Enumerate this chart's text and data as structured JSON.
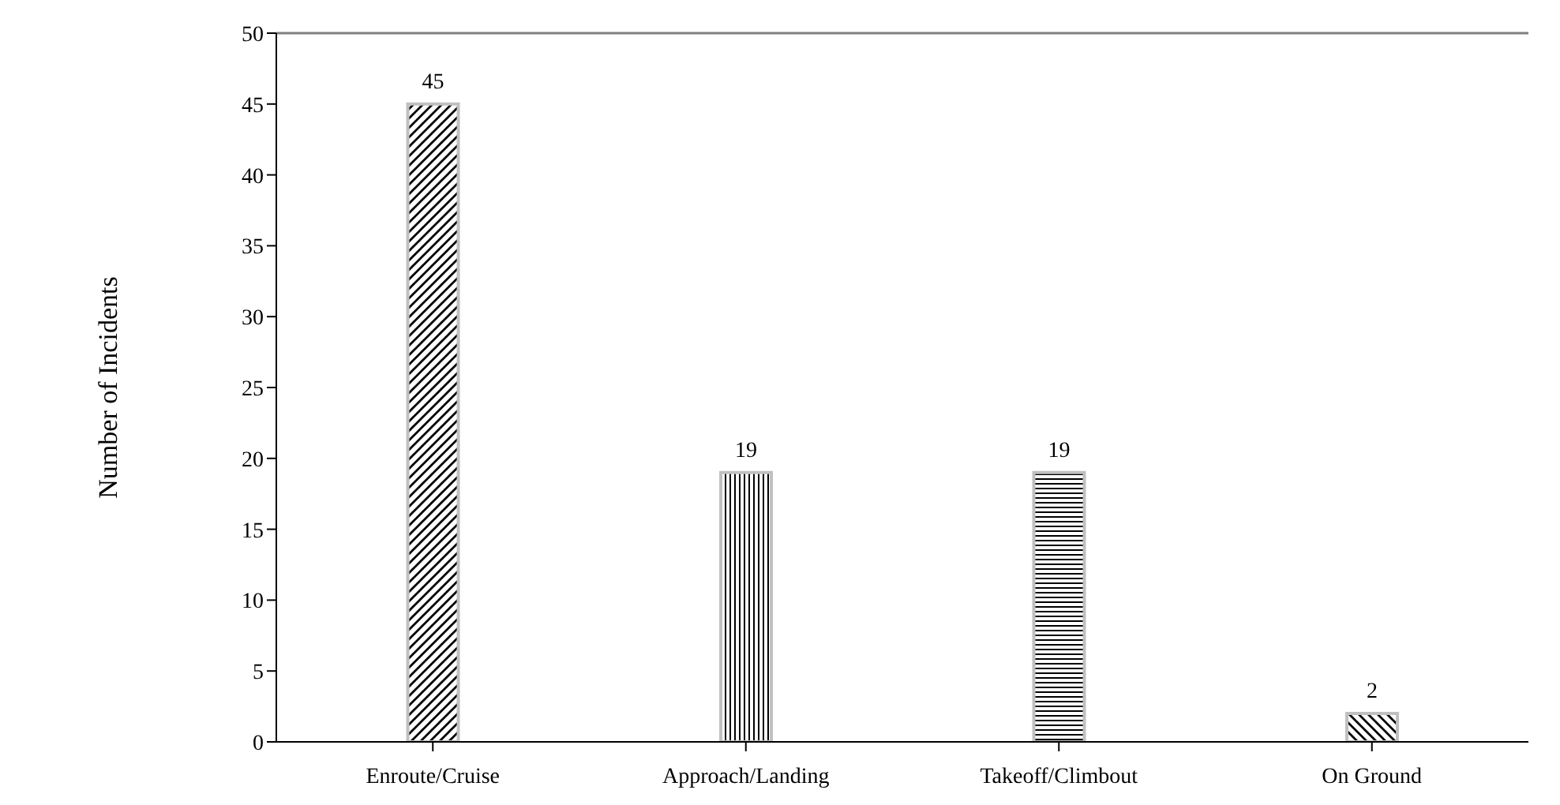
{
  "chart_data": {
    "type": "bar",
    "ylabel": "Number of Incidents",
    "categories": [
      "Enroute/Cruise",
      "Approach/Landing",
      "Takeoff/Climbout",
      "On Ground"
    ],
    "values": [
      45,
      19,
      19,
      2
    ],
    "colors": [
      "#c0c0c0",
      "#c0c0c0",
      "#c0c0c0",
      "#c0c0c0"
    ],
    "ylim": [
      0,
      50
    ],
    "yticks": [
      0,
      5,
      10,
      15,
      20,
      25,
      30,
      35,
      40,
      45,
      50
    ],
    "grid": false,
    "data_labels": true
  }
}
